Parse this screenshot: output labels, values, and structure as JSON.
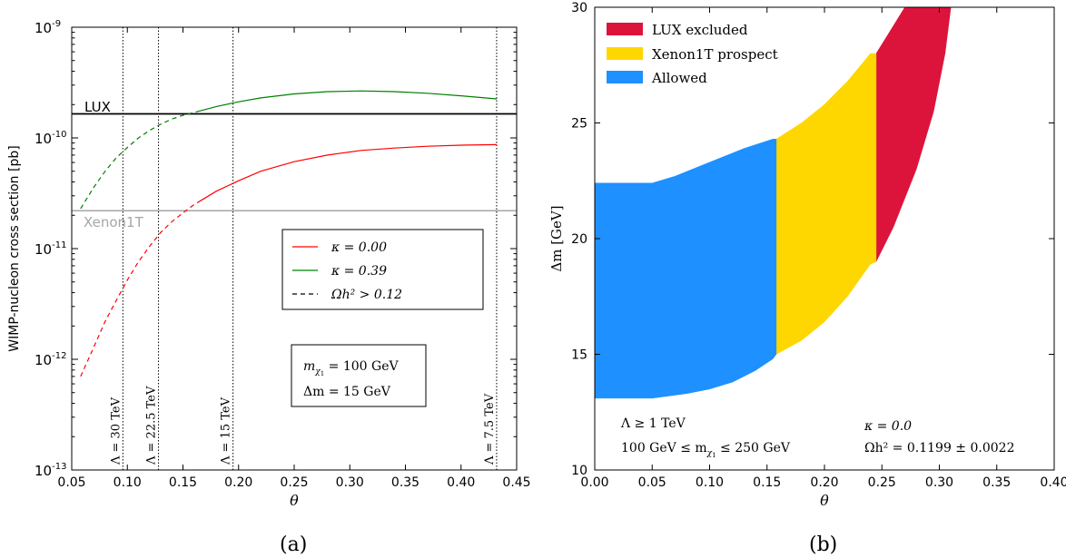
{
  "colors": {
    "red_line": "#ff0000",
    "green_line": "#007f00",
    "lux_line": "#000000",
    "xenon_line": "#a6a6a6",
    "lux_excluded": "#dc143c",
    "xenon_prospect": "#ffd700",
    "allowed": "#1e90ff"
  },
  "captions": {
    "a": "(a)",
    "b": "(b)"
  },
  "chart_data": [
    {
      "type": "line",
      "xlabel": "θ",
      "ylabel": "WIMP-nucleon cross section [pb]",
      "xlim": [
        0.05,
        0.45
      ],
      "ylim": [
        1e-13,
        1e-09
      ],
      "yscale": "log",
      "x_ticks": [
        "0.05",
        "0.10",
        "0.15",
        "0.20",
        "0.25",
        "0.30",
        "0.35",
        "0.40",
        "0.45"
      ],
      "y_ticks": [
        {
          "base": "10",
          "exp": "-13"
        },
        {
          "base": "10",
          "exp": "-12"
        },
        {
          "base": "10",
          "exp": "-11"
        },
        {
          "base": "10",
          "exp": "-10"
        },
        {
          "base": "10",
          "exp": "-9"
        }
      ],
      "hlines": [
        {
          "name": "LUX",
          "y": 1.65e-10
        },
        {
          "name": "Xenon1T",
          "y": 2.2e-11
        }
      ],
      "vlines": [
        {
          "x": 0.096,
          "label": "Λ = 30 TeV"
        },
        {
          "x": 0.128,
          "label": "Λ = 22.5 TeV"
        },
        {
          "x": 0.195,
          "label": "Λ = 15 TeV"
        },
        {
          "x": 0.432,
          "label": "Λ = 7.5 TeV"
        }
      ],
      "series": [
        {
          "name": "κ = 0.00",
          "color": "red",
          "points": [
            [
              0.058,
              7e-13
            ],
            [
              0.07,
              1.3e-12
            ],
            [
              0.08,
              2.2e-12
            ],
            [
              0.09,
              3.4e-12
            ],
            [
              0.1,
              5.2e-12
            ],
            [
              0.11,
              7.6e-12
            ],
            [
              0.12,
              1.05e-11
            ],
            [
              0.13,
              1.4e-11
            ],
            [
              0.14,
              1.75e-11
            ],
            [
              0.15,
              2.1e-11
            ],
            [
              0.16,
              2.5e-11
            ],
            [
              0.18,
              3.3e-11
            ],
            [
              0.2,
              4.1e-11
            ],
            [
              0.22,
              5e-11
            ],
            [
              0.25,
              6.1e-11
            ],
            [
              0.28,
              7e-11
            ],
            [
              0.31,
              7.7e-11
            ],
            [
              0.34,
              8.1e-11
            ],
            [
              0.37,
              8.4e-11
            ],
            [
              0.4,
              8.6e-11
            ],
            [
              0.432,
              8.7e-11
            ]
          ],
          "dashed_below_x": 0.165
        },
        {
          "name": "κ = 0.39",
          "color": "green",
          "points": [
            [
              0.058,
              2.3e-11
            ],
            [
              0.07,
              3.6e-11
            ],
            [
              0.08,
              5e-11
            ],
            [
              0.09,
              6.6e-11
            ],
            [
              0.1,
              8.2e-11
            ],
            [
              0.11,
              1e-10
            ],
            [
              0.12,
              1.17e-10
            ],
            [
              0.13,
              1.33e-10
            ],
            [
              0.14,
              1.48e-10
            ],
            [
              0.15,
              1.6e-10
            ],
            [
              0.16,
              1.7e-10
            ],
            [
              0.18,
              1.92e-10
            ],
            [
              0.2,
              2.12e-10
            ],
            [
              0.22,
              2.3e-10
            ],
            [
              0.25,
              2.5e-10
            ],
            [
              0.28,
              2.62e-10
            ],
            [
              0.31,
              2.66e-10
            ],
            [
              0.34,
              2.62e-10
            ],
            [
              0.37,
              2.53e-10
            ],
            [
              0.4,
              2.4e-10
            ],
            [
              0.432,
              2.25e-10
            ]
          ],
          "dashed_below_x": 0.165
        }
      ],
      "legend": {
        "placement": "right",
        "entries": [
          "κ = 0.00",
          "κ = 0.39",
          "Ωh² > 0.12"
        ]
      },
      "annotation": {
        "line1_pre": "m",
        "line1_sub": "χ",
        "line1_sub2": "0",
        "line1_sub3": "1",
        "line1_post": " = 100 GeV",
        "line2": "Δm = 15 GeV"
      },
      "hline_labels": {
        "lux": "LUX",
        "xenon": "Xenon1T"
      }
    },
    {
      "type": "area",
      "xlabel": "θ",
      "ylabel": "Δm [GeV]",
      "xlim": [
        0.0,
        0.4
      ],
      "ylim": [
        10,
        30
      ],
      "x_ticks": [
        "0.00",
        "0.05",
        "0.10",
        "0.15",
        "0.20",
        "0.25",
        "0.30",
        "0.35",
        "0.40"
      ],
      "y_ticks": [
        "10",
        "15",
        "20",
        "25",
        "30"
      ],
      "regions": [
        {
          "name": "Allowed",
          "color": "allowed",
          "lower_boundary": [
            [
              0.0,
              13.1
            ],
            [
              0.05,
              13.1
            ],
            [
              0.08,
              13.3
            ],
            [
              0.1,
              13.5
            ],
            [
              0.12,
              13.8
            ],
            [
              0.14,
              14.3
            ],
            [
              0.155,
              14.8
            ]
          ],
          "upper_boundary": [
            [
              0.0,
              22.4
            ],
            [
              0.05,
              22.4
            ],
            [
              0.07,
              22.7
            ],
            [
              0.09,
              23.1
            ],
            [
              0.11,
              23.5
            ],
            [
              0.13,
              23.9
            ],
            [
              0.155,
              24.3
            ]
          ]
        },
        {
          "name": "Xenon1T prospect",
          "color": "xenon_prospect",
          "lower_boundary": [
            [
              0.158,
              15.0
            ],
            [
              0.18,
              15.6
            ],
            [
              0.2,
              16.4
            ],
            [
              0.22,
              17.5
            ],
            [
              0.24,
              18.9
            ]
          ],
          "upper_boundary": [
            [
              0.158,
              24.3
            ],
            [
              0.18,
              25.0
            ],
            [
              0.2,
              25.8
            ],
            [
              0.22,
              26.8
            ],
            [
              0.24,
              28.0
            ]
          ]
        },
        {
          "name": "LUX excluded",
          "color": "lux_excluded",
          "lower_boundary": [
            [
              0.245,
              19.0
            ],
            [
              0.26,
              20.5
            ],
            [
              0.28,
              23.0
            ],
            [
              0.295,
              25.5
            ],
            [
              0.305,
              28.0
            ],
            [
              0.31,
              30.0
            ]
          ],
          "upper_boundary": [
            [
              0.245,
              28.0
            ],
            [
              0.255,
              28.8
            ],
            [
              0.27,
              30.0
            ]
          ]
        }
      ],
      "legend": {
        "placement": "top-left",
        "entries": [
          "LUX excluded",
          "Xenon1T prospect",
          "Allowed"
        ]
      },
      "annotations": {
        "left1": "Λ ≥ 1 TeV",
        "left2_pre": "100 GeV ≤ m",
        "left2_post": " ≤ 250 GeV",
        "right1": "κ = 0.0",
        "right2": "Ωh² = 0.1199 ± 0.0022"
      }
    }
  ]
}
